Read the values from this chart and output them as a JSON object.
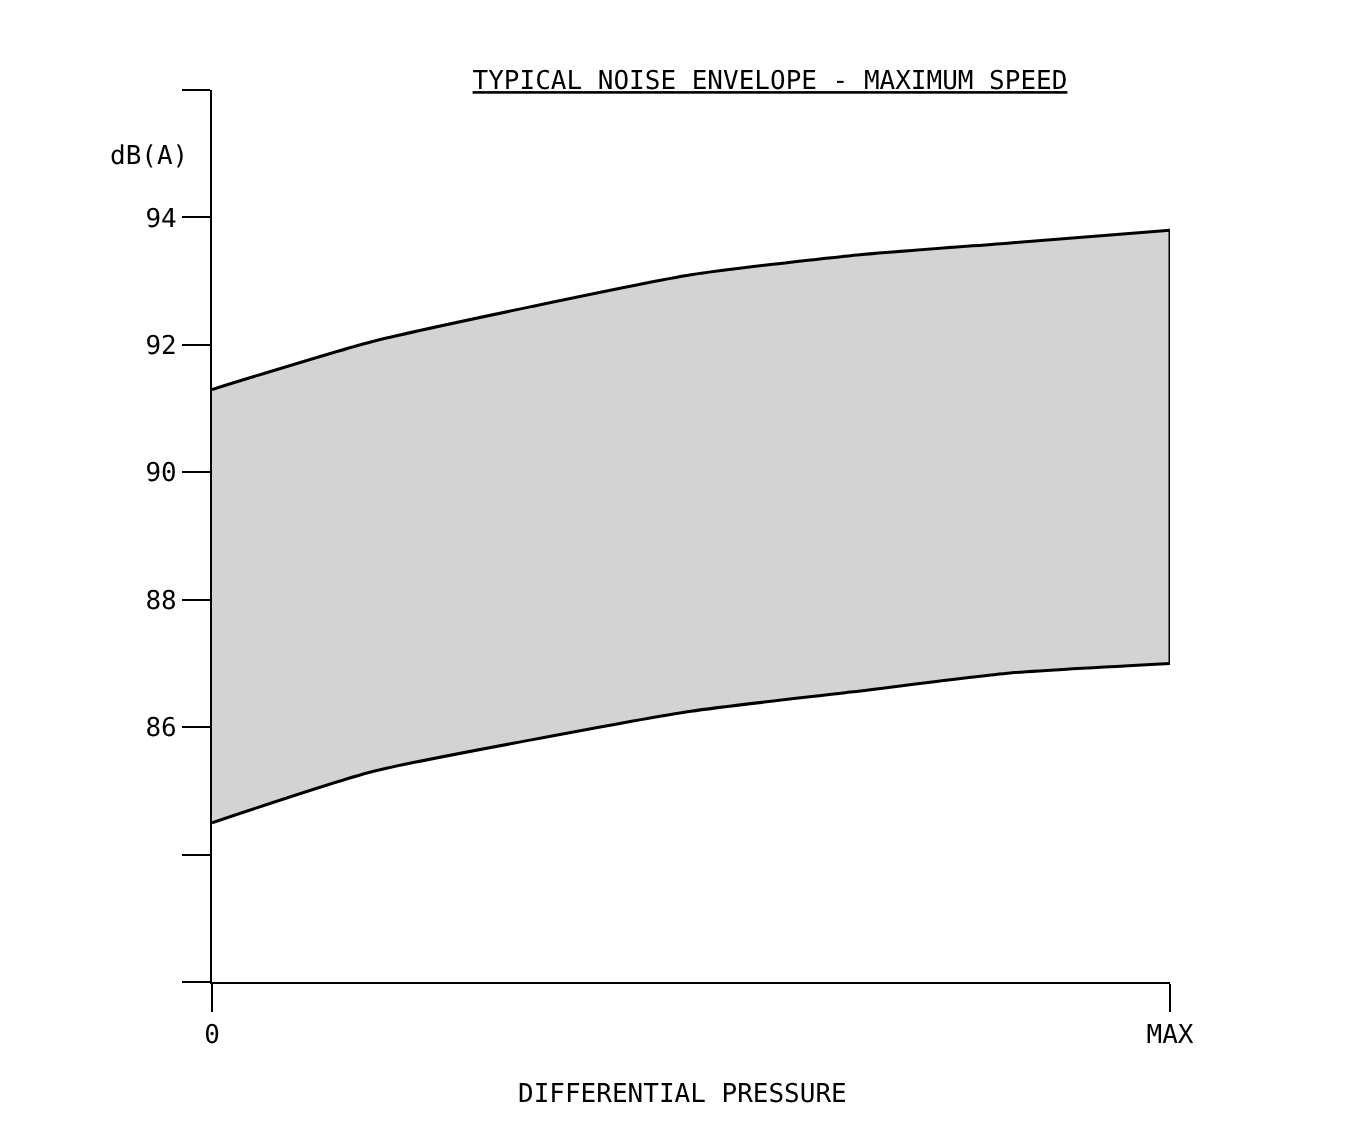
{
  "chart_data": {
    "type": "area",
    "title": "TYPICAL NOISE ENVELOPE - MAXIMUM SPEED",
    "xlabel": "DIFFERENTIAL PRESSURE",
    "ylabel": "dB(A)",
    "categories": [
      "0",
      null,
      null,
      null,
      null,
      null,
      "MAX"
    ],
    "series": [
      {
        "type": "line",
        "color": "#000000",
        "values": [
          84.5,
          85.3,
          85.8,
          86.25,
          86.55,
          86.85,
          87.0
        ]
      },
      {
        "color": "#d3d3d3",
        "values": [
          91.3,
          92.05,
          92.6,
          93.1,
          93.4,
          93.6,
          93.8
        ]
      }
    ],
    "ylim": [
      82,
      96
    ],
    "yticks": [
      {
        "value": 82,
        "label": null
      },
      {
        "value": 84,
        "label": null
      },
      86,
      88,
      90,
      92,
      94,
      {
        "value": 96,
        "label": null
      }
    ],
    "grid": false
  }
}
